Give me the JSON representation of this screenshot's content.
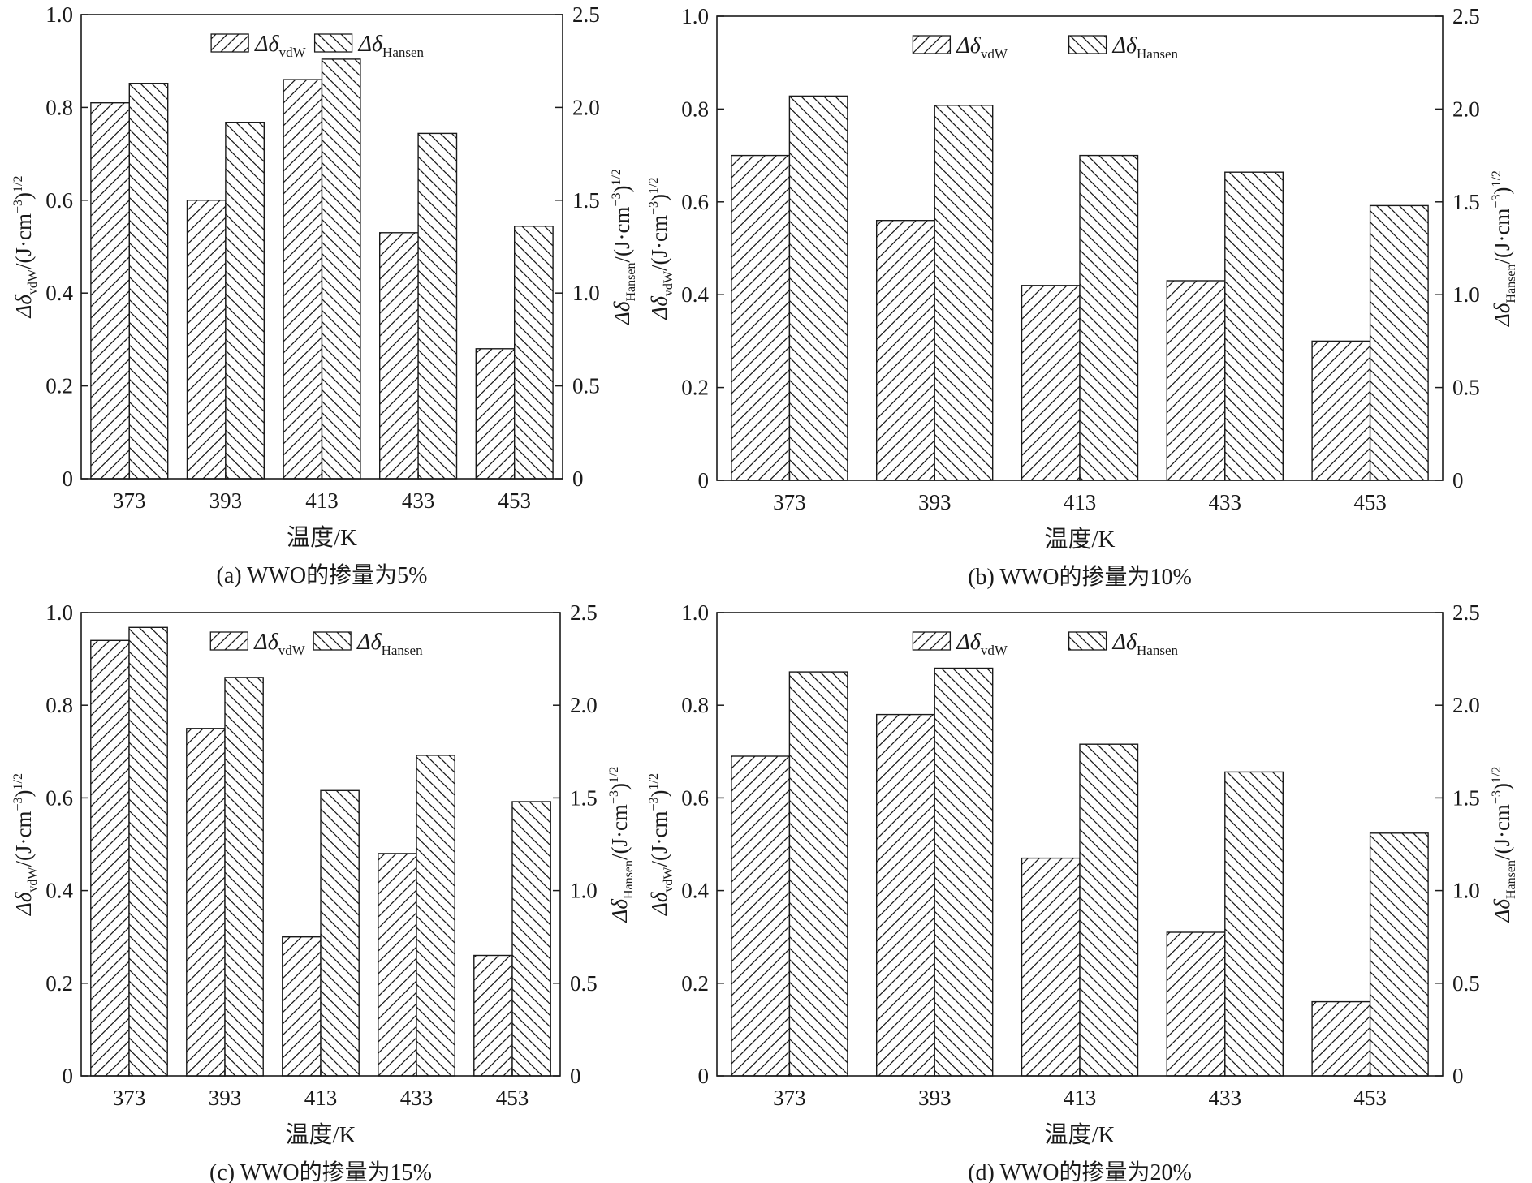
{
  "figure": {
    "legend": {
      "vdw": "Δδ",
      "vdw_sub": "vdW",
      "hansen": "Δδ",
      "hansen_sub": "Hansen"
    },
    "left_axis_label": {
      "main": "Δδ",
      "sub": "vdW",
      "unit": "/(J·cm",
      "exp": "−3",
      "close": ")",
      "pow": "1/2"
    },
    "right_axis_label": {
      "main": "Δδ",
      "sub": "Hansen",
      "unit": "/(J·cm",
      "exp": "−3",
      "close": ")",
      "pow": "1/2"
    }
  },
  "chart_data": [
    {
      "type": "bar",
      "title": "(a) WWO的掺量为5%",
      "xlabel": "温度/K",
      "categories": [
        "373",
        "393",
        "413",
        "433",
        "453"
      ],
      "left_ylim": [
        0,
        1.0
      ],
      "left_ticks": [
        "0",
        "0.2",
        "0.4",
        "0.6",
        "0.8",
        "1.0"
      ],
      "right_ylim": [
        0,
        2.5
      ],
      "right_ticks": [
        "0",
        "0.5",
        "1.0",
        "1.5",
        "2.0",
        "2.5"
      ],
      "series": [
        {
          "name": "Δδ vdW",
          "axis": "left",
          "values": [
            0.81,
            0.6,
            0.86,
            0.53,
            0.28
          ]
        },
        {
          "name": "Δδ Hansen",
          "axis": "right",
          "values": [
            2.13,
            1.92,
            2.26,
            1.86,
            1.36
          ]
        }
      ]
    },
    {
      "type": "bar",
      "title": "(b) WWO的掺量为10%",
      "xlabel": "温度/K",
      "categories": [
        "373",
        "393",
        "413",
        "433",
        "453"
      ],
      "left_ylim": [
        0,
        1.0
      ],
      "left_ticks": [
        "0",
        "0.2",
        "0.4",
        "0.6",
        "0.8",
        "1.0"
      ],
      "right_ylim": [
        0,
        2.5
      ],
      "right_ticks": [
        "0",
        "0.5",
        "1.0",
        "1.5",
        "2.0",
        "2.5"
      ],
      "series": [
        {
          "name": "Δδ vdW",
          "axis": "left",
          "values": [
            0.7,
            0.56,
            0.42,
            0.43,
            0.3
          ]
        },
        {
          "name": "Δδ Hansen",
          "axis": "right",
          "values": [
            2.07,
            2.02,
            1.75,
            1.66,
            1.48
          ]
        }
      ]
    },
    {
      "type": "bar",
      "title": "(c) WWO的掺量为15%",
      "xlabel": "温度/K",
      "categories": [
        "373",
        "393",
        "413",
        "433",
        "453"
      ],
      "left_ylim": [
        0,
        1.0
      ],
      "left_ticks": [
        "0",
        "0.2",
        "0.4",
        "0.6",
        "0.8",
        "1.0"
      ],
      "right_ylim": [
        0,
        2.5
      ],
      "right_ticks": [
        "0",
        "0.5",
        "1.0",
        "1.5",
        "2.0",
        "2.5"
      ],
      "series": [
        {
          "name": "Δδ vdW",
          "axis": "left",
          "values": [
            0.94,
            0.75,
            0.3,
            0.48,
            0.26
          ]
        },
        {
          "name": "Δδ Hansen",
          "axis": "right",
          "values": [
            2.42,
            2.15,
            1.54,
            1.73,
            1.48
          ]
        }
      ]
    },
    {
      "type": "bar",
      "title": "(d) WWO的掺量为20%",
      "xlabel": "温度/K",
      "categories": [
        "373",
        "393",
        "413",
        "433",
        "453"
      ],
      "left_ylim": [
        0,
        1.0
      ],
      "left_ticks": [
        "0",
        "0.2",
        "0.4",
        "0.6",
        "0.8",
        "1.0"
      ],
      "right_ylim": [
        0,
        2.5
      ],
      "right_ticks": [
        "0",
        "0.5",
        "1.0",
        "1.5",
        "2.0",
        "2.5"
      ],
      "series": [
        {
          "name": "Δδ vdW",
          "axis": "left",
          "values": [
            0.69,
            0.78,
            0.47,
            0.31,
            0.16
          ]
        },
        {
          "name": "Δδ Hansen",
          "axis": "right",
          "values": [
            2.18,
            2.2,
            1.79,
            1.64,
            1.31
          ]
        }
      ]
    }
  ]
}
